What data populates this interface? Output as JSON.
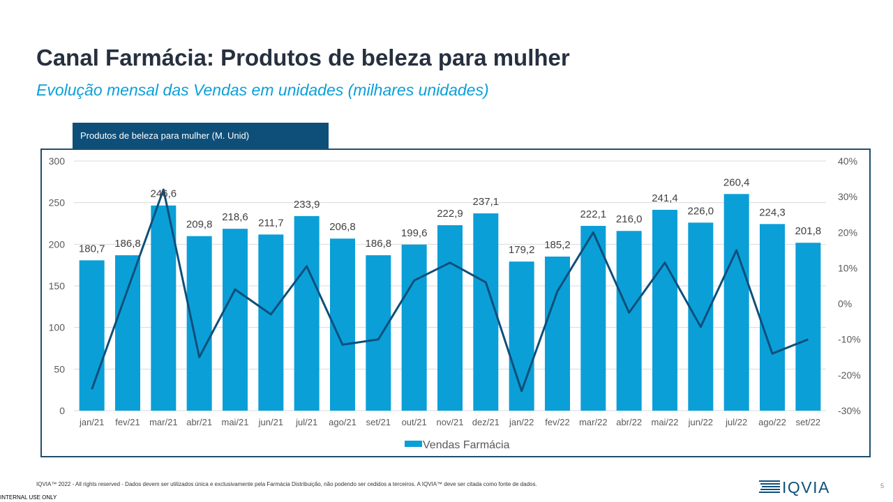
{
  "header": {
    "title": "Canal Farmácia: Produtos de beleza para mulher",
    "subtitle": "Evolução mensal das Vendas em unidades (milhares unidades)"
  },
  "chart_tab": "Produtos de beleza para mulher  (M. Unid)",
  "chart_data": {
    "type": "bar",
    "categories": [
      "jan/21",
      "fev/21",
      "mar/21",
      "abr/21",
      "mai/21",
      "jun/21",
      "jul/21",
      "ago/21",
      "set/21",
      "out/21",
      "nov/21",
      "dez/21",
      "jan/22",
      "fev/22",
      "mar/22",
      "abr/22",
      "mai/22",
      "jun/22",
      "jul/22",
      "ago/22",
      "set/22"
    ],
    "series": [
      {
        "name": "Vendas Farmácia",
        "type": "bar",
        "axis": "left",
        "values": [
          180.7,
          186.8,
          246.6,
          209.8,
          218.6,
          211.7,
          233.9,
          206.8,
          186.8,
          199.6,
          222.9,
          237.1,
          179.2,
          185.2,
          222.1,
          216.0,
          241.4,
          226.0,
          260.4,
          224.3,
          201.8
        ],
        "labels": [
          "180,7",
          "186,8",
          "246,6",
          "209,8",
          "218,6",
          "211,7",
          "233,9",
          "206,8",
          "186,8",
          "199,6",
          "222,9",
          "237,1",
          "179,2",
          "185,2",
          "222,1",
          "216,0",
          "241,4",
          "226,0",
          "260,4",
          "224,3",
          "201,8"
        ]
      },
      {
        "type": "line",
        "axis": "right",
        "values": [
          -24,
          4,
          32,
          -15,
          4,
          -3,
          10.5,
          -11.5,
          -10,
          6.5,
          11.5,
          6,
          -24.5,
          3.5,
          20,
          -2.5,
          11.5,
          -6.5,
          15,
          -14,
          -10
        ]
      }
    ],
    "y_left": {
      "min": 0,
      "max": 300,
      "ticks": [
        "0",
        "50",
        "100",
        "150",
        "200",
        "250",
        "300"
      ]
    },
    "y_right": {
      "min": -30,
      "max": 40,
      "ticks": [
        "-30%",
        "-20%",
        "-10%",
        "0%",
        "10%",
        "20%",
        "30%",
        "40%"
      ]
    },
    "grid": true,
    "legend_position": "bottom",
    "colors": {
      "bar": "#0b9fd8",
      "line": "#0e4f7a",
      "grid": "#d9d9d9",
      "axis_text": "#595959"
    }
  },
  "footer": {
    "copyright": "IQVIA™ 2022 - All rights reserved - Dados devem ser utilizados única e exclusivamente pela Farmácia Distribuição, não podendo ser cedidos a terceiros. A IQVIA™ deve ser citada como fonte de dados.",
    "internal": "INTERNAL USE ONLY",
    "logo_text": "IQVIA",
    "page_number": "5"
  }
}
